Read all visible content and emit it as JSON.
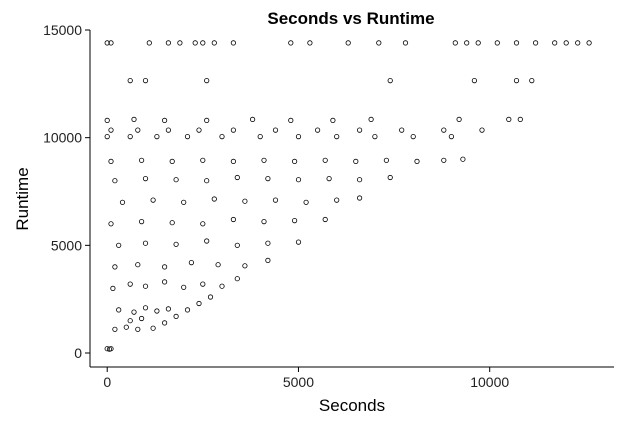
{
  "chart_data": {
    "type": "scatter",
    "title": "Seconds vs Runtime",
    "xlabel": "Seconds",
    "ylabel": "Runtime",
    "xlim": [
      -450,
      13250
    ],
    "ylim": [
      -650,
      15000
    ],
    "xticks": [
      0,
      5000,
      10000
    ],
    "yticks": [
      0,
      5000,
      10000,
      15000
    ],
    "xtick_labels": [
      "0",
      "5000",
      "10000"
    ],
    "ytick_labels": [
      "0",
      "5000",
      "10000",
      "15000"
    ],
    "grid": false,
    "legend": "none",
    "marker": "open-circle",
    "marker_color": "#000000",
    "description_of_density": "Dense triangular cloud bounded above by Runtime≈9000 and below by the diagonal Runtime≈Seconds, with horizontal bands at ~10000, 10300, 10800, 12600 and 14400",
    "series": [
      {
        "points": [
          [
            0,
            200
          ],
          [
            100,
            200
          ],
          [
            60,
            180
          ],
          [
            200,
            1100
          ],
          [
            500,
            1200
          ],
          [
            800,
            1100
          ],
          [
            1200,
            1150
          ],
          [
            1500,
            1400
          ],
          [
            1800,
            1700
          ],
          [
            2100,
            2000
          ],
          [
            2400,
            2300
          ],
          [
            2700,
            2600
          ],
          [
            300,
            2000
          ],
          [
            700,
            1900
          ],
          [
            1000,
            2100
          ],
          [
            1300,
            1950
          ],
          [
            600,
            1500
          ],
          [
            900,
            1600
          ],
          [
            1600,
            2050
          ],
          [
            150,
            3000
          ],
          [
            600,
            3200
          ],
          [
            1000,
            3100
          ],
          [
            1500,
            3300
          ],
          [
            2000,
            3050
          ],
          [
            2500,
            3200
          ],
          [
            3000,
            3100
          ],
          [
            3400,
            3450
          ],
          [
            200,
            4000
          ],
          [
            800,
            4100
          ],
          [
            1500,
            4000
          ],
          [
            2200,
            4200
          ],
          [
            2900,
            4100
          ],
          [
            3600,
            4050
          ],
          [
            4200,
            4300
          ],
          [
            300,
            5000
          ],
          [
            1000,
            5100
          ],
          [
            1800,
            5050
          ],
          [
            2600,
            5200
          ],
          [
            3400,
            5000
          ],
          [
            4200,
            5100
          ],
          [
            5000,
            5150
          ],
          [
            100,
            6000
          ],
          [
            900,
            6100
          ],
          [
            1700,
            6050
          ],
          [
            2500,
            6000
          ],
          [
            3300,
            6200
          ],
          [
            4100,
            6100
          ],
          [
            4900,
            6150
          ],
          [
            5700,
            6200
          ],
          [
            400,
            7000
          ],
          [
            1200,
            7100
          ],
          [
            2000,
            7000
          ],
          [
            2800,
            7150
          ],
          [
            3600,
            7050
          ],
          [
            4400,
            7100
          ],
          [
            5200,
            7000
          ],
          [
            6000,
            7100
          ],
          [
            6600,
            7200
          ],
          [
            200,
            8000
          ],
          [
            1000,
            8100
          ],
          [
            1800,
            8050
          ],
          [
            2600,
            8000
          ],
          [
            3400,
            8150
          ],
          [
            4200,
            8100
          ],
          [
            5000,
            8050
          ],
          [
            5800,
            8100
          ],
          [
            6600,
            8050
          ],
          [
            7400,
            8150
          ],
          [
            100,
            8900
          ],
          [
            900,
            8950
          ],
          [
            1700,
            8900
          ],
          [
            2500,
            8950
          ],
          [
            3300,
            8900
          ],
          [
            4100,
            8950
          ],
          [
            4900,
            8900
          ],
          [
            5700,
            8950
          ],
          [
            6500,
            8900
          ],
          [
            7300,
            8950
          ],
          [
            8100,
            8900
          ],
          [
            8800,
            8950
          ],
          [
            9300,
            9000
          ],
          [
            0,
            10050
          ],
          [
            600,
            10050
          ],
          [
            1300,
            10050
          ],
          [
            2100,
            10050
          ],
          [
            3000,
            10050
          ],
          [
            4000,
            10050
          ],
          [
            5000,
            10050
          ],
          [
            6000,
            10050
          ],
          [
            7000,
            10050
          ],
          [
            8000,
            10050
          ],
          [
            9000,
            10050
          ],
          [
            100,
            10350
          ],
          [
            800,
            10350
          ],
          [
            1600,
            10350
          ],
          [
            2400,
            10350
          ],
          [
            3300,
            10350
          ],
          [
            4400,
            10350
          ],
          [
            5500,
            10350
          ],
          [
            6600,
            10350
          ],
          [
            7700,
            10350
          ],
          [
            8800,
            10350
          ],
          [
            9800,
            10350
          ],
          [
            0,
            10800
          ],
          [
            700,
            10850
          ],
          [
            1500,
            10800
          ],
          [
            2600,
            10800
          ],
          [
            3800,
            10850
          ],
          [
            4800,
            10800
          ],
          [
            5900,
            10800
          ],
          [
            6900,
            10850
          ],
          [
            9200,
            10850
          ],
          [
            10500,
            10850
          ],
          [
            10800,
            10850
          ],
          [
            600,
            12650
          ],
          [
            1000,
            12650
          ],
          [
            2600,
            12650
          ],
          [
            7400,
            12650
          ],
          [
            9600,
            12650
          ],
          [
            10700,
            12650
          ],
          [
            11100,
            12650
          ],
          [
            0,
            14400
          ],
          [
            100,
            14400
          ],
          [
            1100,
            14400
          ],
          [
            1600,
            14400
          ],
          [
            1900,
            14400
          ],
          [
            2300,
            14400
          ],
          [
            2500,
            14400
          ],
          [
            2800,
            14400
          ],
          [
            3300,
            14400
          ],
          [
            4800,
            14400
          ],
          [
            5300,
            14400
          ],
          [
            6300,
            14400
          ],
          [
            7100,
            14400
          ],
          [
            7800,
            14400
          ],
          [
            9100,
            14400
          ],
          [
            9400,
            14400
          ],
          [
            9700,
            14400
          ],
          [
            10200,
            14400
          ],
          [
            10700,
            14400
          ],
          [
            11200,
            14400
          ],
          [
            11700,
            14400
          ],
          [
            12000,
            14400
          ],
          [
            12300,
            14400
          ],
          [
            12600,
            14400
          ]
        ]
      }
    ]
  }
}
